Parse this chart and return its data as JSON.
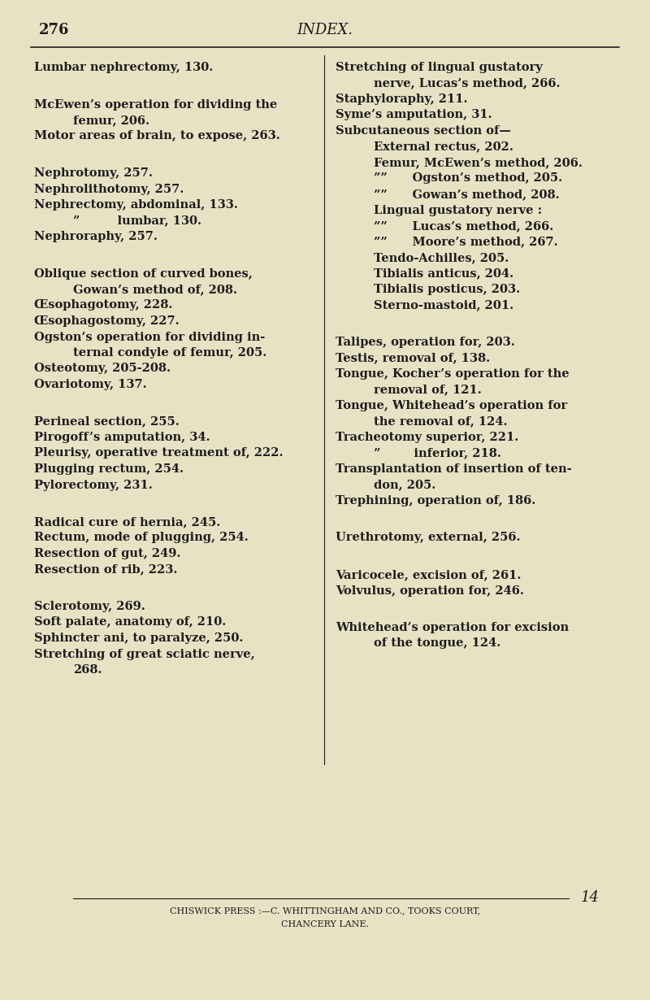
{
  "bg_color": "#e8e2c4",
  "text_color": "#1c1c1c",
  "page_number": "276",
  "page_title": "INDEX.",
  "font_size": 10.5,
  "footer_font_size": 8.0,
  "left_entries": [
    {
      "text": "Lumbar nephrectomy, 130.",
      "indent": 0,
      "space_before": 0,
      "space_after": 1
    },
    {
      "text": "McEwen’s operation for dividing the",
      "indent": 0,
      "space_before": 1,
      "space_after": 0
    },
    {
      "text": "femur, 206.",
      "indent": 1,
      "space_before": 0,
      "space_after": 0
    },
    {
      "text": "Motor areas of brain, to expose, 263.",
      "indent": 0,
      "space_before": 0,
      "space_after": 1
    },
    {
      "text": "Nephrotomy, 257.",
      "indent": 0,
      "space_before": 1,
      "space_after": 0
    },
    {
      "text": "Nephrolithotomy, 257.",
      "indent": 0,
      "space_before": 0,
      "space_after": 0
    },
    {
      "text": "Nephrectomy, abdominal, 133.",
      "indent": 0,
      "space_before": 0,
      "space_after": 0
    },
    {
      "text": "”         lumbar, 130.",
      "indent": 1,
      "space_before": 0,
      "space_after": 0
    },
    {
      "text": "Nephroraphy, 257.",
      "indent": 0,
      "space_before": 0,
      "space_after": 1
    },
    {
      "text": "Oblique section of curved bones,",
      "indent": 0,
      "space_before": 1,
      "space_after": 0
    },
    {
      "text": "Gowan’s method of, 208.",
      "indent": 1,
      "space_before": 0,
      "space_after": 0
    },
    {
      "text": "Œsophagotomy, 228.",
      "indent": 0,
      "space_before": 0,
      "space_after": 0
    },
    {
      "text": "Œsophagostomy, 227.",
      "indent": 0,
      "space_before": 0,
      "space_after": 0
    },
    {
      "text": "Ogston’s operation for dividing in-",
      "indent": 0,
      "space_before": 0,
      "space_after": 0
    },
    {
      "text": "ternal condyle of femur, 205.",
      "indent": 1,
      "space_before": 0,
      "space_after": 0
    },
    {
      "text": "Osteotomy, 205-208.",
      "indent": 0,
      "space_before": 0,
      "space_after": 0
    },
    {
      "text": "Ovariotomy, 137.",
      "indent": 0,
      "space_before": 0,
      "space_after": 1
    },
    {
      "text": "Perineal section, 255.",
      "indent": 0,
      "space_before": 1,
      "space_after": 0
    },
    {
      "text": "Pirogoff’s amputation, 34.",
      "indent": 0,
      "space_before": 0,
      "space_after": 0
    },
    {
      "text": "Pleurisy, operative treatment of, 222.",
      "indent": 0,
      "space_before": 0,
      "space_after": 0
    },
    {
      "text": "Plugging rectum, 254.",
      "indent": 0,
      "space_before": 0,
      "space_after": 0
    },
    {
      "text": "Pylorectomy, 231.",
      "indent": 0,
      "space_before": 0,
      "space_after": 1
    },
    {
      "text": "Radical cure of hernia, 245.",
      "indent": 0,
      "space_before": 1,
      "space_after": 0
    },
    {
      "text": "Rectum, mode of plugging, 254.",
      "indent": 0,
      "space_before": 0,
      "space_after": 0
    },
    {
      "text": "Resection of gut, 249.",
      "indent": 0,
      "space_before": 0,
      "space_after": 0
    },
    {
      "text": "Resection of rib, 223.",
      "indent": 0,
      "space_before": 0,
      "space_after": 1
    },
    {
      "text": "Sclerotomy, 269.",
      "indent": 0,
      "space_before": 1,
      "space_after": 0
    },
    {
      "text": "Soft palate, anatomy of, 210.",
      "indent": 0,
      "space_before": 0,
      "space_after": 0
    },
    {
      "text": "Sphincter ani, to paralyze, 250.",
      "indent": 0,
      "space_before": 0,
      "space_after": 0
    },
    {
      "text": "Stretching of great sciatic nerve,",
      "indent": 0,
      "space_before": 0,
      "space_after": 0
    },
    {
      "text": "268.",
      "indent": 1,
      "space_before": 0,
      "space_after": 0
    }
  ],
  "right_entries": [
    {
      "text": "Stretching of lingual gustatory",
      "indent": 0,
      "space_before": 0,
      "space_after": 0
    },
    {
      "text": "nerve, Lucas’s method, 266.",
      "indent": 1,
      "space_before": 0,
      "space_after": 0
    },
    {
      "text": "Staphyloraphy, 211.",
      "indent": 0,
      "space_before": 0,
      "space_after": 0
    },
    {
      "text": "Syme’s amputation, 31.",
      "indent": 0,
      "space_before": 0,
      "space_after": 0
    },
    {
      "text": "Subcutaneous section of—",
      "indent": 0,
      "space_before": 0,
      "space_after": 0
    },
    {
      "text": "External rectus, 202.",
      "indent": 2,
      "space_before": 0,
      "space_after": 0
    },
    {
      "text": "Femur, McEwen’s method, 206.",
      "indent": 2,
      "space_before": 0,
      "space_after": 0
    },
    {
      "text": "””      Ogston’s method, 205.",
      "indent": 2,
      "space_before": 0,
      "space_after": 0
    },
    {
      "text": "””      Gowan’s method, 208.",
      "indent": 2,
      "space_before": 0,
      "space_after": 0
    },
    {
      "text": "Lingual gustatory nerve :",
      "indent": 2,
      "space_before": 0,
      "space_after": 0
    },
    {
      "text": "””      Lucas’s method, 266.",
      "indent": 2,
      "space_before": 0,
      "space_after": 0
    },
    {
      "text": "””      Moore’s method, 267.",
      "indent": 2,
      "space_before": 0,
      "space_after": 0
    },
    {
      "text": "Tendo-Achilles, 205.",
      "indent": 2,
      "space_before": 0,
      "space_after": 0
    },
    {
      "text": "Tibialis anticus, 204.",
      "indent": 2,
      "space_before": 0,
      "space_after": 0
    },
    {
      "text": "Tibialis posticus, 203.",
      "indent": 2,
      "space_before": 0,
      "space_after": 0
    },
    {
      "text": "Sterno-mastoid, 201.",
      "indent": 2,
      "space_before": 0,
      "space_after": 1
    },
    {
      "text": "Talipes, operation for, 203.",
      "indent": 0,
      "space_before": 1,
      "space_after": 0
    },
    {
      "text": "Testis, removal of, 138.",
      "indent": 0,
      "space_before": 0,
      "space_after": 0
    },
    {
      "text": "Tongue, Kocher’s operation for the",
      "indent": 0,
      "space_before": 0,
      "space_after": 0
    },
    {
      "text": "removal of, 121.",
      "indent": 1,
      "space_before": 0,
      "space_after": 0
    },
    {
      "text": "Tongue, Whitehead’s operation for",
      "indent": 0,
      "space_before": 0,
      "space_after": 0
    },
    {
      "text": "the removal of, 124.",
      "indent": 1,
      "space_before": 0,
      "space_after": 0
    },
    {
      "text": "Tracheotomy superior, 221.",
      "indent": 0,
      "space_before": 0,
      "space_after": 0
    },
    {
      "text": "”        inferior, 218.",
      "indent": 1,
      "space_before": 0,
      "space_after": 0
    },
    {
      "text": "Transplantation of insertion of ten-",
      "indent": 0,
      "space_before": 0,
      "space_after": 0
    },
    {
      "text": "don, 205.",
      "indent": 1,
      "space_before": 0,
      "space_after": 0
    },
    {
      "text": "Trephining, operation of, 186.",
      "indent": 0,
      "space_before": 0,
      "space_after": 1
    },
    {
      "text": "Urethrotomy, external, 256.",
      "indent": 0,
      "space_before": 1,
      "space_after": 1
    },
    {
      "text": "Varicocele, excision of, 261.",
      "indent": 0,
      "space_before": 1,
      "space_after": 0
    },
    {
      "text": "Volvulus, operation for, 246.",
      "indent": 0,
      "space_before": 0,
      "space_after": 1
    },
    {
      "text": "Whitehead’s operation for excision",
      "indent": 0,
      "space_before": 1,
      "space_after": 0
    },
    {
      "text": "of the tongue, 124.",
      "indent": 1,
      "space_before": 0,
      "space_after": 0
    }
  ],
  "footer_line1": "CHISWICK PRESS :—C. WHITTINGHAM AND CO., TOOKS COURT,",
  "footer_line2": "CHANCERY LANE."
}
